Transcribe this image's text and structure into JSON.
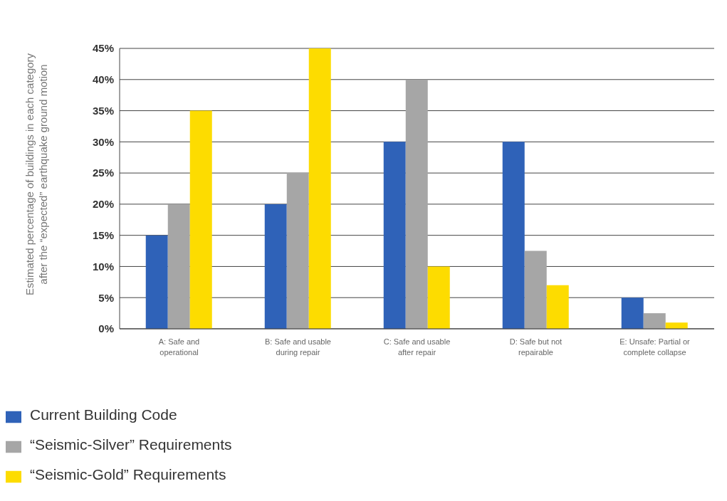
{
  "chart_data": {
    "type": "bar",
    "ylabel": "Estimated percentage of buildings in each category after the “expected” earthquake ground motion",
    "categories": [
      "A: Safe and operational",
      "B: Safe and usable during repair",
      "C: Safe and usable after repair",
      "D: Safe but not repairable",
      "E: Unsafe: Partial or complete collapse"
    ],
    "series": [
      {
        "name": "Current Building Code",
        "color": "#2f62b8",
        "values": [
          15,
          20,
          30,
          30,
          5
        ]
      },
      {
        "name": "“Seismic-Silver” Requirements",
        "color": "#a6a6a6",
        "values": [
          20,
          25,
          40,
          12.5,
          2.5
        ]
      },
      {
        "name": "“Seismic-Gold” Requirements",
        "color": "#fddc00",
        "values": [
          35,
          45,
          10,
          7,
          1
        ]
      }
    ],
    "ylim": [
      0,
      45
    ],
    "yticks": [
      {
        "value": 0,
        "label": "0%"
      },
      {
        "value": 5,
        "label": "5%"
      },
      {
        "value": 10,
        "label": "10%"
      },
      {
        "value": 15,
        "label": "15%"
      },
      {
        "value": 20,
        "label": "20%"
      },
      {
        "value": 25,
        "label": "25%"
      },
      {
        "value": 30,
        "label": "30%"
      },
      {
        "value": 35,
        "label": "35%"
      },
      {
        "value": 40,
        "label": "40%"
      },
      {
        "value": 45,
        "label": "45%"
      }
    ],
    "grid": "y",
    "legend": "bottom"
  }
}
